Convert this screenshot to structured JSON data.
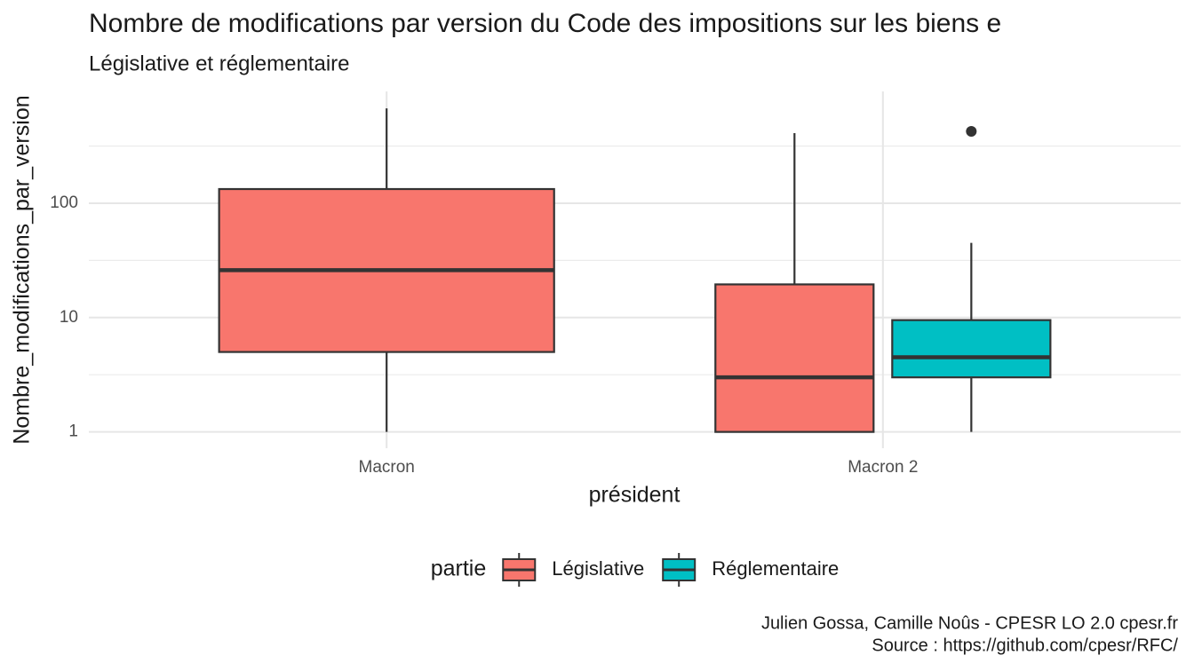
{
  "chart_data": {
    "type": "boxplot",
    "title": "Nombre de modifications par version du Code des impositions sur les biens e",
    "subtitle": "Législative et réglementaire",
    "x_label": "président",
    "y_label": "Nombre_modifications_par_version",
    "caption": [
      "Julien Gossa, Camille Noûs - CPESR LO 2.0 cpesr.fr",
      "Source : https://github.com/cpesr/RFC/"
    ],
    "legend_title": "partie",
    "legend_position": "bottom",
    "log_scale": true,
    "grid": true,
    "categories": [
      "Macron",
      "Macron 2"
    ],
    "ylim": [
      0.72,
      950
    ],
    "yticks": [
      1,
      10,
      100
    ],
    "series": [
      {
        "name": "Législative",
        "color": "#F8766D",
        "min": [
          1,
          1
        ],
        "q1": [
          5,
          1
        ],
        "median": [
          26,
          3
        ],
        "q3": [
          133,
          19.5
        ],
        "max": [
          675,
          410
        ],
        "outliers": [
          [],
          []
        ]
      },
      {
        "name": "Réglementaire",
        "color": "#00BFC4",
        "min": [
          null,
          1
        ],
        "q1": [
          null,
          3
        ],
        "median": [
          null,
          4.5
        ],
        "q3": [
          null,
          9.5
        ],
        "max": [
          null,
          45
        ],
        "outliers": [
          [],
          [
            425
          ]
        ]
      }
    ]
  }
}
